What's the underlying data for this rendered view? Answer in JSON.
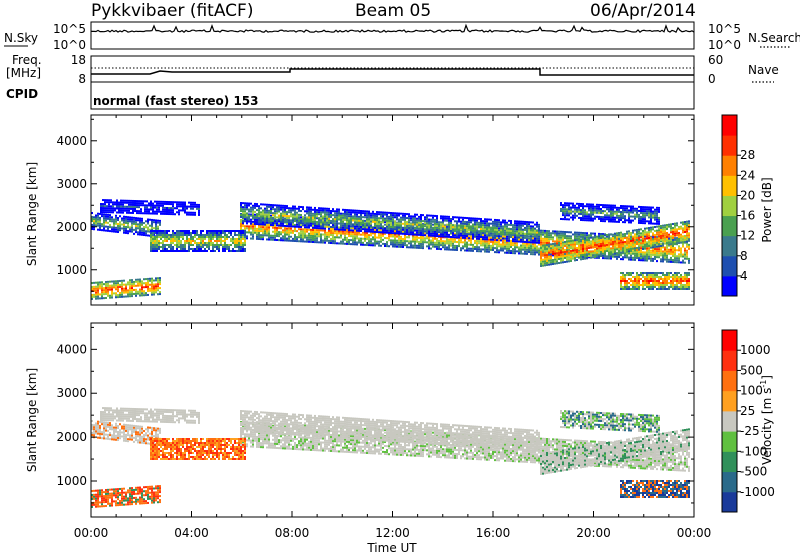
{
  "header": {
    "station": "Pykkvibaer (fitACF)",
    "beam": "Beam 05",
    "date": "06/Apr/2014"
  },
  "noise_panel": {
    "left_label": "N.Sky",
    "left_ticks": [
      "10^5",
      "10^0"
    ],
    "right_ticks": [
      "10^5",
      "10^0"
    ],
    "right_label": "N.Search"
  },
  "freq_panel": {
    "left_label_1": "Freq.",
    "left_label_2": "[MHz]",
    "left_ticks": [
      "18",
      "8"
    ],
    "right_ticks": [
      "60",
      "0"
    ],
    "right_label": "Nave"
  },
  "cpid": {
    "label": "CPID",
    "value": "normal (fast stereo) 153"
  },
  "chart_data": [
    {
      "type": "heatmap",
      "title": "",
      "xlabel": "Time UT",
      "ylabel": "Slant Range [km]",
      "x_ticks": [
        "00:00",
        "04:00",
        "08:00",
        "12:00",
        "16:00",
        "20:00",
        "00:00"
      ],
      "y_ticks": [
        "1000",
        "2000",
        "3000",
        "4000"
      ],
      "ylim": [
        180,
        4600
      ],
      "colorbar": {
        "label": "Power [dB]",
        "ticks": [
          "4",
          "8",
          "12",
          "16",
          "20",
          "24",
          "28"
        ],
        "colors": [
          "#0000ff",
          "#1e4fb0",
          "#3a7a8c",
          "#4aa050",
          "#a0d040",
          "#ffc000",
          "#ff8000",
          "#ff3000",
          "#ff0000"
        ]
      }
    },
    {
      "type": "heatmap",
      "title": "",
      "xlabel": "Time UT",
      "ylabel": "Slant Range [km]",
      "x_ticks": [
        "00:00",
        "04:00",
        "08:00",
        "12:00",
        "16:00",
        "20:00",
        "00:00"
      ],
      "y_ticks": [
        "1000",
        "2000",
        "3000",
        "4000"
      ],
      "ylim": [
        180,
        4600
      ],
      "colorbar": {
        "label_main": "Velocity [m s",
        "label_exp": "-1",
        "label_end": "]",
        "ticks": [
          "1000",
          "500",
          "100",
          "25",
          "-25",
          "-100",
          "-500",
          "-1000"
        ],
        "colors": [
          "#1a3a9a",
          "#2a6a8a",
          "#30905a",
          "#60c040",
          "#c8c8c0",
          "#ffa020",
          "#ff7010",
          "#ff3010",
          "#ff0000"
        ]
      }
    }
  ],
  "colors": {
    "ground_scatter": "#bebeb4"
  }
}
